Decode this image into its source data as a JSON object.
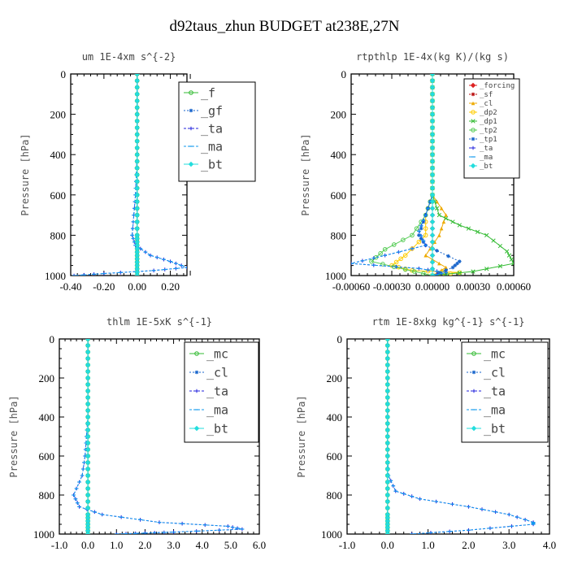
{
  "suptitle": "d92taus_zhun  BUDGET at238E,27N",
  "chart_data": [
    {
      "type": "line",
      "title": "um  1E-4xm s^{-2}",
      "ylabel": "Pressure [hPa]",
      "xlim": [
        -0.4,
        0.3
      ],
      "ylim": [
        1000,
        0
      ],
      "xticks": [
        -0.4,
        -0.2,
        0.0,
        0.2
      ],
      "xtick_labels": [
        "-0.40",
        "-0.20",
        "0.00",
        "0.20"
      ],
      "yticks": [
        0,
        200,
        400,
        600,
        800,
        1000
      ],
      "ytick_labels": [
        "0",
        "200",
        "400",
        "600",
        "800",
        "1000"
      ],
      "legend_position": "top-right",
      "series": [
        {
          "name": "_f",
          "color": "#33bb33",
          "marker": "circle",
          "x": [
            0,
            0,
            0,
            0,
            0,
            0,
            0,
            0,
            0,
            0,
            0,
            0,
            0
          ],
          "y": [
            0,
            100,
            200,
            300,
            400,
            500,
            600,
            700,
            800,
            850,
            900,
            950,
            1000
          ]
        },
        {
          "name": "_gf",
          "color": "#1a66cc",
          "marker": "star",
          "x": [
            0,
            0,
            0,
            0,
            0,
            0,
            0,
            0,
            0,
            0,
            0,
            0,
            0
          ],
          "y": [
            0,
            100,
            200,
            300,
            400,
            500,
            600,
            700,
            800,
            850,
            900,
            950,
            1000
          ]
        },
        {
          "name": "_ta",
          "color": "#2222dd",
          "marker": "plus",
          "x": [
            0,
            0,
            0,
            0,
            0,
            -0.005,
            -0.01,
            -0.02,
            -0.03,
            -0.01,
            0.08,
            0.2,
            0.3,
            0.1,
            -0.2,
            -0.38
          ],
          "y": [
            0,
            100,
            200,
            300,
            400,
            500,
            600,
            700,
            800,
            850,
            900,
            930,
            960,
            975,
            990,
            1000
          ]
        },
        {
          "name": "_ma",
          "color": "#1199ee",
          "marker": "dash",
          "x": [
            0,
            0,
            0,
            0,
            0,
            -0.005,
            -0.01,
            -0.02,
            -0.03,
            -0.01,
            0.08,
            0.2,
            0.3,
            0.1,
            -0.2,
            -0.38
          ],
          "y": [
            0,
            100,
            200,
            300,
            400,
            500,
            600,
            700,
            800,
            850,
            900,
            930,
            960,
            975,
            990,
            1000
          ]
        },
        {
          "name": "_bt",
          "color": "#22dddd",
          "marker": "diamond",
          "x": [
            0,
            0,
            0,
            0,
            0,
            0,
            0,
            0,
            0,
            0,
            0,
            0,
            0
          ],
          "y": [
            0,
            100,
            200,
            300,
            400,
            500,
            600,
            700,
            800,
            850,
            900,
            950,
            1000
          ]
        }
      ]
    },
    {
      "type": "line",
      "title": "rtpthlp  1E-4x(kg K)/(kg s)",
      "ylabel": "Pressure [hPa]",
      "xlim": [
        -0.0006,
        0.0006
      ],
      "ylim": [
        1000,
        0
      ],
      "xticks": [
        -0.0006,
        -0.0003,
        0.0,
        0.0003,
        0.0006
      ],
      "xtick_labels": [
        "-0.00060",
        "-0.00030",
        "0.00000",
        "0.00030",
        "0.00060"
      ],
      "yticks": [
        0,
        200,
        400,
        600,
        800,
        1000
      ],
      "ytick_labels": [
        "0",
        "200",
        "400",
        "600",
        "800",
        "1000"
      ],
      "legend_position": "top-right",
      "series": [
        {
          "name": "_forcing",
          "color": "#dd2222",
          "marker": "diamond",
          "x": [
            0,
            0,
            0,
            0,
            0,
            0,
            0,
            0,
            0,
            0,
            0
          ],
          "y": [
            0,
            100,
            200,
            300,
            400,
            500,
            600,
            700,
            800,
            900,
            1000
          ]
        },
        {
          "name": "_sf",
          "color": "#bb1111",
          "marker": "star",
          "x": [
            0,
            0,
            0,
            0,
            0,
            0,
            0,
            0,
            0,
            0,
            0
          ],
          "y": [
            0,
            100,
            200,
            300,
            400,
            500,
            600,
            700,
            800,
            900,
            1000
          ]
        },
        {
          "name": "_cl",
          "color": "#eeaa00",
          "marker": "triangle",
          "x": [
            0,
            0,
            0,
            0,
            0,
            0,
            0,
            0.0001,
            5e-05,
            -5e-05,
            0.0001,
            0
          ],
          "y": [
            0,
            100,
            200,
            300,
            400,
            500,
            600,
            700,
            800,
            900,
            960,
            1000
          ]
        },
        {
          "name": "_dp2",
          "color": "#ffcc00",
          "marker": "circle",
          "x": [
            0,
            0,
            0,
            0,
            0,
            0,
            0,
            -5e-05,
            -5e-05,
            -0.0002,
            -0.0003,
            -0.00015,
            0.0002,
            0
          ],
          "y": [
            0,
            100,
            200,
            300,
            400,
            500,
            600,
            700,
            800,
            900,
            950,
            975,
            985,
            1000
          ]
        },
        {
          "name": "_dp1",
          "color": "#33bb33",
          "marker": "cross",
          "x": [
            0,
            0,
            0,
            0,
            0,
            0,
            0,
            5e-05,
            0.0002,
            0.0004,
            0.00055,
            0.0006,
            0.0003,
            0
          ],
          "y": [
            0,
            100,
            200,
            300,
            400,
            500,
            600,
            700,
            750,
            800,
            880,
            940,
            980,
            1000
          ]
        },
        {
          "name": "_tp2",
          "color": "#55cc55",
          "marker": "circle",
          "x": [
            0,
            0,
            0,
            0,
            0,
            0,
            0,
            -5e-05,
            -0.00015,
            -0.00035,
            -0.00045,
            -0.0002,
            0
          ],
          "y": [
            0,
            100,
            200,
            300,
            400,
            500,
            600,
            700,
            800,
            870,
            930,
            970,
            1000
          ]
        },
        {
          "name": "_tp1",
          "color": "#1a66cc",
          "marker": "star",
          "x": [
            0,
            0,
            0,
            0,
            0,
            0,
            0,
            -5e-05,
            -0.0001,
            -5e-05,
            0.0002,
            0.00015,
            0
          ],
          "y": [
            0,
            100,
            200,
            300,
            400,
            500,
            600,
            700,
            800,
            850,
            930,
            960,
            1000
          ]
        },
        {
          "name": "_ta",
          "color": "#2222dd",
          "marker": "plus",
          "x": [
            0,
            0,
            0,
            0,
            0,
            0,
            0,
            -5e-05,
            -0.0001,
            -5e-05,
            -0.00035,
            -0.0006,
            -0.0001,
            0.0001,
            0
          ],
          "y": [
            0,
            100,
            200,
            300,
            400,
            500,
            600,
            700,
            780,
            850,
            900,
            940,
            965,
            985,
            1000
          ]
        },
        {
          "name": "_ma",
          "color": "#1199ee",
          "marker": "dash",
          "x": [
            0,
            0,
            0,
            0,
            0,
            0,
            0,
            -5e-05,
            -0.0001,
            -5e-05,
            -0.00035,
            -0.0006,
            -0.0001,
            0.0001,
            0
          ],
          "y": [
            0,
            100,
            200,
            300,
            400,
            500,
            600,
            700,
            780,
            850,
            900,
            940,
            965,
            985,
            1000
          ]
        },
        {
          "name": "_bt",
          "color": "#22dddd",
          "marker": "diamond",
          "x": [
            0,
            0,
            0,
            0,
            0,
            0,
            0,
            0,
            0,
            0,
            0
          ],
          "y": [
            0,
            100,
            200,
            300,
            400,
            500,
            600,
            700,
            800,
            900,
            1000
          ]
        }
      ]
    },
    {
      "type": "line",
      "title": "thlm  1E-5xK s^{-1}",
      "ylabel": "Pressure [hPa]",
      "xlim": [
        -1.0,
        6.0
      ],
      "ylim": [
        1000,
        0
      ],
      "xticks": [
        -1,
        0,
        1,
        2,
        3,
        4,
        5,
        6
      ],
      "xtick_labels": [
        "-1.0",
        "0.0",
        "1.0",
        "2.0",
        "3.0",
        "4.0",
        "5.0",
        "6.0"
      ],
      "yticks": [
        0,
        200,
        400,
        600,
        800,
        1000
      ],
      "ytick_labels": [
        "0",
        "200",
        "400",
        "600",
        "800",
        "1000"
      ],
      "legend_position": "top-right",
      "series": [
        {
          "name": "_mc",
          "color": "#33bb33",
          "marker": "circle",
          "x": [
            0,
            0,
            0,
            0,
            0,
            0,
            0,
            0,
            0,
            0,
            0,
            0
          ],
          "y": [
            0,
            100,
            200,
            300,
            400,
            500,
            600,
            700,
            800,
            900,
            950,
            1000
          ]
        },
        {
          "name": "_cl",
          "color": "#1a66cc",
          "marker": "star",
          "x": [
            0,
            0,
            0,
            0,
            0,
            0,
            0,
            0,
            0,
            0,
            0,
            0
          ],
          "y": [
            0,
            100,
            200,
            300,
            400,
            500,
            600,
            700,
            800,
            900,
            950,
            1000
          ]
        },
        {
          "name": "_ta",
          "color": "#2222dd",
          "marker": "plus",
          "x": [
            0,
            0,
            0,
            0,
            0,
            -0.05,
            -0.1,
            -0.2,
            -0.5,
            -0.3,
            0.5,
            2.5,
            4.9,
            5.4,
            3.0,
            2.0,
            1.0
          ],
          "y": [
            0,
            100,
            200,
            300,
            400,
            500,
            600,
            700,
            800,
            860,
            900,
            940,
            960,
            975,
            990,
            995,
            1000
          ]
        },
        {
          "name": "_ma",
          "color": "#1199ee",
          "marker": "dash",
          "x": [
            0,
            0,
            0,
            0,
            0,
            -0.05,
            -0.1,
            -0.2,
            -0.5,
            -0.3,
            0.5,
            2.5,
            4.9,
            5.4,
            3.0,
            2.0,
            1.0
          ],
          "y": [
            0,
            100,
            200,
            300,
            400,
            500,
            600,
            700,
            800,
            860,
            900,
            940,
            960,
            975,
            990,
            995,
            1000
          ]
        },
        {
          "name": "_bt",
          "color": "#22dddd",
          "marker": "diamond",
          "x": [
            0,
            0,
            0,
            0,
            0,
            0,
            0,
            0,
            0,
            0,
            0,
            0
          ],
          "y": [
            0,
            100,
            200,
            300,
            400,
            500,
            600,
            700,
            800,
            900,
            950,
            1000
          ]
        }
      ]
    },
    {
      "type": "line",
      "title": "rtm  1E-8xkg kg^{-1} s^{-1}",
      "ylabel": "Pressure [hPa]",
      "xlim": [
        -1.0,
        4.0
      ],
      "ylim": [
        1000,
        0
      ],
      "xticks": [
        -1,
        0,
        1,
        2,
        3,
        4
      ],
      "xtick_labels": [
        "-1.0",
        "0.0",
        "1.0",
        "2.0",
        "3.0",
        "4.0"
      ],
      "yticks": [
        0,
        200,
        400,
        600,
        800,
        1000
      ],
      "ytick_labels": [
        "0",
        "200",
        "400",
        "600",
        "800",
        "1000"
      ],
      "legend_position": "top-right",
      "series": [
        {
          "name": "_mc",
          "color": "#33bb33",
          "marker": "circle",
          "x": [
            0,
            0,
            0,
            0,
            0,
            0,
            0,
            0,
            0,
            0,
            0,
            0
          ],
          "y": [
            0,
            100,
            200,
            300,
            400,
            500,
            600,
            700,
            800,
            900,
            950,
            1000
          ]
        },
        {
          "name": "_cl",
          "color": "#1a66cc",
          "marker": "star",
          "x": [
            0,
            0,
            0,
            0,
            0,
            0,
            0,
            0,
            0,
            0,
            0,
            0
          ],
          "y": [
            0,
            100,
            200,
            300,
            400,
            500,
            600,
            700,
            800,
            900,
            950,
            1000
          ]
        },
        {
          "name": "_ta",
          "color": "#2222dd",
          "marker": "plus",
          "x": [
            0,
            0,
            0,
            0,
            0,
            0,
            0,
            0.02,
            0.2,
            0.8,
            2.0,
            3.0,
            3.6,
            3.6,
            2.0,
            0.6
          ],
          "y": [
            0,
            100,
            200,
            300,
            400,
            500,
            600,
            700,
            780,
            820,
            860,
            900,
            940,
            950,
            980,
            1000
          ]
        },
        {
          "name": "_ma",
          "color": "#1199ee",
          "marker": "dash",
          "x": [
            0,
            0,
            0,
            0,
            0,
            0,
            0,
            0.02,
            0.2,
            0.8,
            2.0,
            3.0,
            3.6,
            3.6,
            2.0,
            0.6
          ],
          "y": [
            0,
            100,
            200,
            300,
            400,
            500,
            600,
            700,
            780,
            820,
            860,
            900,
            940,
            950,
            980,
            1000
          ]
        },
        {
          "name": "_bt",
          "color": "#22dddd",
          "marker": "diamond",
          "x": [
            0,
            0,
            0,
            0,
            0,
            0,
            0,
            0,
            0,
            0,
            0,
            0
          ],
          "y": [
            0,
            100,
            200,
            300,
            400,
            500,
            600,
            700,
            800,
            900,
            950,
            1000
          ]
        }
      ]
    }
  ]
}
